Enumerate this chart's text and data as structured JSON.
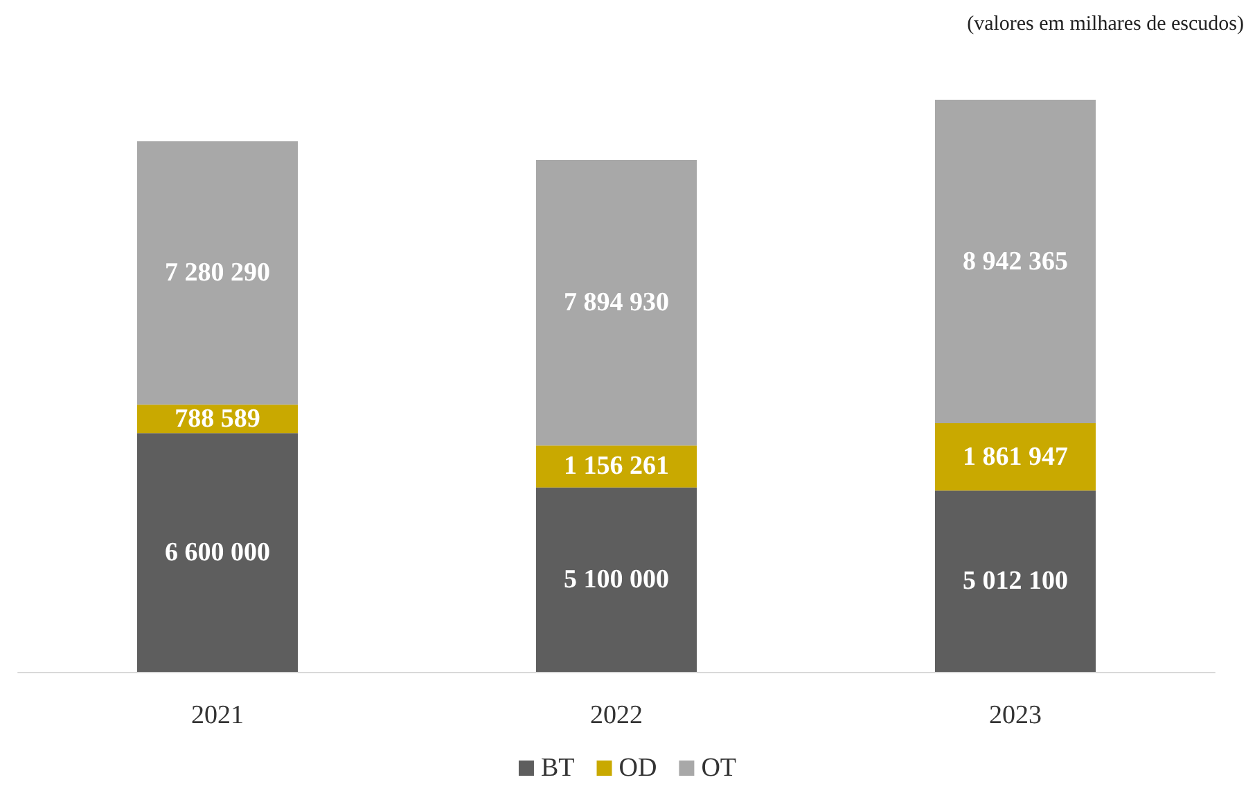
{
  "chart_data": {
    "type": "bar",
    "stacked": true,
    "categories": [
      "2021",
      "2022",
      "2023"
    ],
    "series": [
      {
        "name": "BT",
        "color": "#5e5e5e",
        "values": [
          6600000,
          5100000,
          5012100
        ],
        "value_labels": [
          "6 600 000",
          "5 100 000",
          "5 012 100"
        ]
      },
      {
        "name": "OD",
        "color": "#c9a900",
        "values": [
          788589,
          1156261,
          1861947
        ],
        "value_labels": [
          "788 589",
          "1 156 261",
          "1 861 947"
        ]
      },
      {
        "name": "OT",
        "color": "#a8a8a8",
        "values": [
          7280290,
          7894930,
          8942365
        ],
        "value_labels": [
          "7 280 290",
          "7 894 930",
          "8 942 365"
        ]
      }
    ],
    "annotations": [
      "(valores em milhares de escudos)"
    ],
    "legend": "bottom"
  }
}
